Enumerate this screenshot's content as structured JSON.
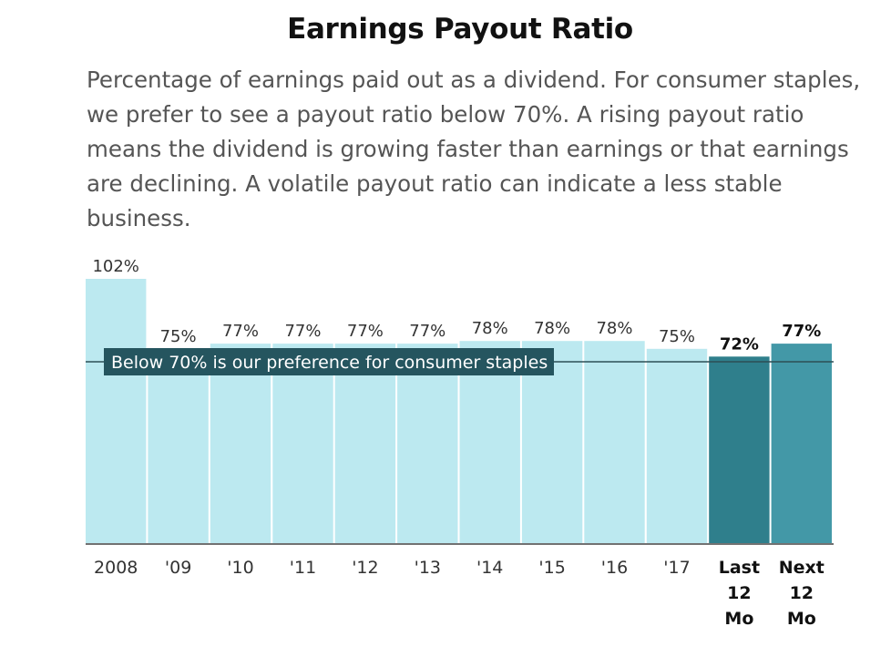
{
  "header": {
    "title": "Earnings Payout Ratio",
    "subtitle": "Percentage of earnings paid out as a dividend. For consumer staples, we prefer to see a payout ratio below 70%. A rising payout ratio means the dividend is growing faster than earnings or that earnings are declining. A volatile payout ratio can indicate a less stable business."
  },
  "colors": {
    "bar": "#bce9f0",
    "bar_highlight_last": "#2f7f8c",
    "bar_highlight_next": "#4398a7",
    "threshold_line": "#2d4f55",
    "threshold_label_bg": "#25555f",
    "axis": "#444444"
  },
  "chart_data": {
    "type": "bar",
    "title": "Earnings Payout Ratio",
    "categories": [
      "2008",
      "'09",
      "'10",
      "'11",
      "'12",
      "'13",
      "'14",
      "'15",
      "'16",
      "'17",
      "Last 12 Mo",
      "Next 12 Mo"
    ],
    "category_lines": [
      [
        "2008"
      ],
      [
        "'09"
      ],
      [
        "'10"
      ],
      [
        "'11"
      ],
      [
        "'12"
      ],
      [
        "'13"
      ],
      [
        "'14"
      ],
      [
        "'15"
      ],
      [
        "'16"
      ],
      [
        "'17"
      ],
      [
        "Last",
        "12",
        "Mo"
      ],
      [
        "Next",
        "12",
        "Mo"
      ]
    ],
    "values": [
      102,
      75,
      77,
      77,
      77,
      77,
      78,
      78,
      78,
      75,
      72,
      77
    ],
    "value_labels": [
      "102%",
      "75%",
      "77%",
      "77%",
      "77%",
      "77%",
      "78%",
      "78%",
      "78%",
      "75%",
      "72%",
      "77%"
    ],
    "highlighted": [
      false,
      false,
      false,
      false,
      false,
      false,
      false,
      false,
      false,
      false,
      true,
      true
    ],
    "threshold": {
      "value": 70,
      "label": "Below 70% is our preference for consumer staples"
    },
    "ylim": [
      0,
      102
    ],
    "xlabel": "",
    "ylabel": "",
    "grid": false
  }
}
